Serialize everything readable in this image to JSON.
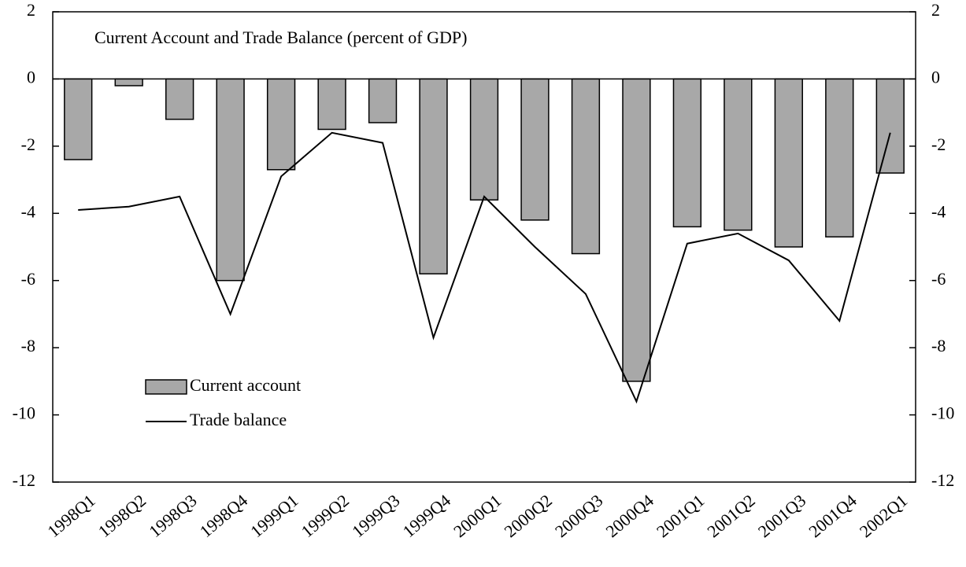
{
  "chart_data": {
    "type": "bar-line",
    "title": "Current Account and Trade Balance (percent of GDP)",
    "categories": [
      "1998Q1",
      "1998Q2",
      "1998Q3",
      "1998Q4",
      "1999Q1",
      "1999Q2",
      "1999Q3",
      "1999Q4",
      "2000Q1",
      "2000Q2",
      "2000Q3",
      "2000Q4",
      "2001Q1",
      "2001Q2",
      "2001Q3",
      "2001Q4",
      "2002Q1"
    ],
    "series": [
      {
        "name": "Current account",
        "type": "bar",
        "color": "#a8a8a8",
        "values": [
          -2.4,
          -0.2,
          -1.2,
          -6.0,
          -2.7,
          -1.5,
          -1.3,
          -5.8,
          -3.6,
          -4.2,
          -5.2,
          -9.0,
          -4.4,
          -4.5,
          -5.0,
          -4.7,
          -2.8
        ]
      },
      {
        "name": "Trade balance",
        "type": "line",
        "color": "#000000",
        "values": [
          -3.9,
          -3.8,
          -3.5,
          -7.0,
          -2.9,
          -1.6,
          -1.9,
          -7.7,
          -3.5,
          -5.0,
          -6.4,
          -9.6,
          -4.9,
          -4.6,
          -5.4,
          -7.2,
          -1.6
        ]
      }
    ],
    "ylim": [
      -12,
      2
    ],
    "yticks": [
      2,
      0,
      -2,
      -4,
      -6,
      -8,
      -10,
      -12
    ],
    "y2lim": [
      -12,
      2
    ],
    "y2ticks": [
      2,
      0,
      -2,
      -4,
      -6,
      -8,
      -10,
      -12
    ],
    "legend": "lower-left"
  }
}
